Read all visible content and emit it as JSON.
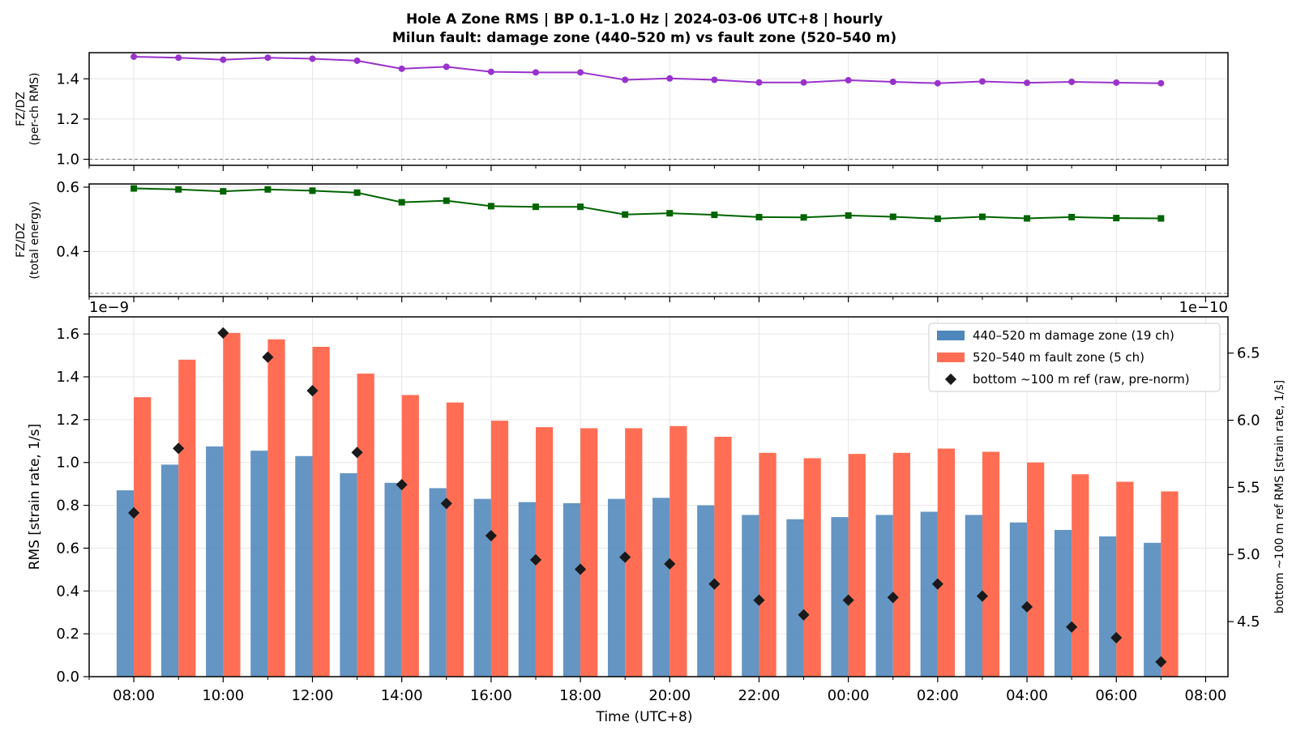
{
  "figure": {
    "title_line1": "Hole A Zone RMS  |  BP 0.1–1.0 Hz  |  2024-03-06 UTC+8  |  hourly",
    "title_line2": "Milun fault: damage zone (440–520 m) vs fault zone (520–540 m)"
  },
  "colors": {
    "damage": "#4f86bb",
    "fault": "#ff6e54",
    "ref_marker": "#1a1a1a",
    "ratio_rms": "#9932cc",
    "ratio_energy": "#006400",
    "grid": "#e6e6e6",
    "axis": "#000000"
  },
  "chart_data": [
    {
      "id": "ratio-rms",
      "type": "line",
      "ylabel": "FZ/DZ\n(per-ch RMS)",
      "ylim": [
        0.97,
        1.53
      ],
      "yticks": [
        1.0,
        1.2,
        1.4
      ],
      "ytick_labels": [
        "1.0",
        "1.2",
        "1.4"
      ],
      "reference_line": 1.0,
      "x_hours": [
        0,
        1,
        2,
        3,
        4,
        5,
        6,
        7,
        8,
        9,
        10,
        11,
        12,
        13,
        14,
        15,
        16,
        17,
        18,
        19,
        20,
        21,
        22,
        23
      ],
      "values": [
        1.51,
        1.505,
        1.495,
        1.505,
        1.5,
        1.49,
        1.45,
        1.46,
        1.435,
        1.432,
        1.432,
        1.395,
        1.402,
        1.395,
        1.382,
        1.382,
        1.393,
        1.385,
        1.378,
        1.387,
        1.38,
        1.385,
        1.381,
        1.378
      ],
      "marker": "circle",
      "grid": true
    },
    {
      "id": "ratio-energy",
      "type": "line",
      "ylabel": "FZ/DZ\n(total energy)",
      "ylim": [
        0.26,
        0.61
      ],
      "yticks": [
        0.4,
        0.6
      ],
      "ytick_labels": [
        "0.4",
        "0.6"
      ],
      "reference_line": 0.27,
      "x_hours": [
        0,
        1,
        2,
        3,
        4,
        5,
        6,
        7,
        8,
        9,
        10,
        11,
        12,
        13,
        14,
        15,
        16,
        17,
        18,
        19,
        20,
        21,
        22,
        23
      ],
      "values": [
        0.596,
        0.593,
        0.587,
        0.593,
        0.589,
        0.583,
        0.553,
        0.558,
        0.541,
        0.539,
        0.539,
        0.515,
        0.519,
        0.514,
        0.507,
        0.506,
        0.512,
        0.508,
        0.502,
        0.508,
        0.503,
        0.507,
        0.504,
        0.503
      ],
      "marker": "square",
      "grid": true
    },
    {
      "id": "zone-rms",
      "type": "bar",
      "xlabel": "Time (UTC+8)",
      "ylabel": "RMS  [strain rate, 1/s]",
      "ylabel_right": "bottom ~100 m ref RMS  [strain rate, 1/s]",
      "scale_left": "1e−9",
      "scale_right": "1e−10",
      "ylim": [
        0.0,
        1.68
      ],
      "yticks": [
        0.0,
        0.2,
        0.4,
        0.6,
        0.8,
        1.0,
        1.2,
        1.4,
        1.6
      ],
      "ytick_labels": [
        "0.0",
        "0.2",
        "0.4",
        "0.6",
        "0.8",
        "1.0",
        "1.2",
        "1.4",
        "1.6"
      ],
      "ylim_right": [
        4.09,
        6.77
      ],
      "yticks_right": [
        4.5,
        5.0,
        5.5,
        6.0,
        6.5
      ],
      "ytick_labels_right": [
        "4.5",
        "5.0",
        "5.5",
        "6.0",
        "6.5"
      ],
      "xlim_hours": [
        -1.0,
        24.5
      ],
      "xtick_hours": [
        0,
        2,
        4,
        6,
        8,
        10,
        12,
        14,
        16,
        18,
        20,
        22,
        24
      ],
      "xtick_labels": [
        "08:00",
        "10:00",
        "12:00",
        "14:00",
        "16:00",
        "18:00",
        "20:00",
        "22:00",
        "00:00",
        "02:00",
        "04:00",
        "06:00",
        "08:00"
      ],
      "x_hours": [
        0,
        1,
        2,
        3,
        4,
        5,
        6,
        7,
        8,
        9,
        10,
        11,
        12,
        13,
        14,
        15,
        16,
        17,
        18,
        19,
        20,
        21,
        22,
        23
      ],
      "series": [
        {
          "name": "440–520 m  damage zone (19 ch)",
          "kind": "bar",
          "values": [
            0.87,
            0.99,
            1.075,
            1.055,
            1.03,
            0.95,
            0.905,
            0.88,
            0.83,
            0.815,
            0.81,
            0.83,
            0.835,
            0.8,
            0.755,
            0.735,
            0.745,
            0.755,
            0.77,
            0.755,
            0.72,
            0.685,
            0.655,
            0.625
          ]
        },
        {
          "name": "520–540 m  fault zone (5 ch)",
          "kind": "bar",
          "values": [
            1.305,
            1.48,
            1.605,
            1.575,
            1.54,
            1.415,
            1.315,
            1.28,
            1.195,
            1.165,
            1.16,
            1.16,
            1.17,
            1.12,
            1.045,
            1.02,
            1.04,
            1.045,
            1.065,
            1.05,
            1.0,
            0.945,
            0.91,
            0.865
          ]
        },
        {
          "name": "bottom ~100 m ref (raw, pre-norm)",
          "kind": "marker",
          "axis": "right",
          "values": [
            5.31,
            5.79,
            6.65,
            6.47,
            6.22,
            5.76,
            5.52,
            5.38,
            5.14,
            4.96,
            4.89,
            4.98,
            4.93,
            4.78,
            4.66,
            4.55,
            4.66,
            4.68,
            4.78,
            4.69,
            4.61,
            4.46,
            4.38,
            4.2
          ]
        }
      ],
      "legend_position": "top-right",
      "grid": true
    }
  ]
}
